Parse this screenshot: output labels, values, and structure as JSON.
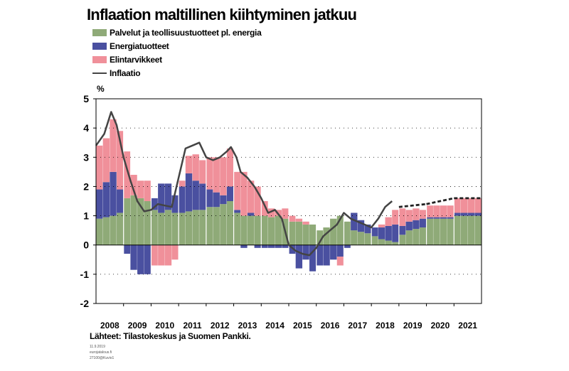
{
  "title": "Inflaation maltillinen kiihtyminen jatkuu",
  "source": "Lähteet: Tilastokeskus ja Suomen Pankki.",
  "footnotes": [
    "11.9.2019",
    "eurojatalous.fi",
    "27100@Kuvio1"
  ],
  "colors": {
    "services": "#8faa78",
    "energy": "#4a50a0",
    "food": "#f0909a",
    "inflation": "#444444",
    "forecast_line": "#222222",
    "frame": "#000000",
    "dotgrid": "#000000"
  },
  "chart_data": {
    "type": "bar",
    "subtype": "stacked bar with line overlay",
    "title": "Inflaation maltillinen kiihtyminen jatkuu",
    "unit_label": "%",
    "ylim": [
      -2,
      5
    ],
    "yticks": [
      "-2",
      "-1",
      "0",
      "1",
      "2",
      "3",
      "4",
      "5"
    ],
    "xlim": [
      2008,
      2022
    ],
    "xticks": [
      "2008",
      "2009",
      "2010",
      "2011",
      "2012",
      "2013",
      "2014",
      "2015",
      "2016",
      "2017",
      "2018",
      "2019",
      "2020",
      "2021"
    ],
    "legend_position": "top-left",
    "legend": [
      {
        "key": "services",
        "label": "Palvelut ja teollisuustuotteet pl. energia",
        "kind": "bar"
      },
      {
        "key": "energy",
        "label": "Energiatuotteet",
        "kind": "bar"
      },
      {
        "key": "food",
        "label": "Elintarvikkeet",
        "kind": "bar"
      },
      {
        "key": "inflation",
        "label": "Inflaatio",
        "kind": "line"
      }
    ],
    "quarters": [
      "2008Q1",
      "2008Q2",
      "2008Q3",
      "2008Q4",
      "2009Q1",
      "2009Q2",
      "2009Q3",
      "2009Q4",
      "2010Q1",
      "2010Q2",
      "2010Q3",
      "2010Q4",
      "2011Q1",
      "2011Q2",
      "2011Q3",
      "2011Q4",
      "2012Q1",
      "2012Q2",
      "2012Q3",
      "2012Q4",
      "2013Q1",
      "2013Q2",
      "2013Q3",
      "2013Q4",
      "2014Q1",
      "2014Q2",
      "2014Q3",
      "2014Q4",
      "2015Q1",
      "2015Q2",
      "2015Q3",
      "2015Q4",
      "2016Q1",
      "2016Q2",
      "2016Q3",
      "2016Q4",
      "2017Q1",
      "2017Q2",
      "2017Q3",
      "2017Q4",
      "2018Q1",
      "2018Q2",
      "2018Q3",
      "2018Q4",
      "2019Q1",
      "2019Q2",
      "2019Q3",
      "2019Q4",
      "2020Q1",
      "2020Q2",
      "2020Q3",
      "2020Q4",
      "2021Q1",
      "2021Q2",
      "2021Q3",
      "2021Q4"
    ],
    "series": [
      {
        "key": "services",
        "values": [
          0.9,
          0.95,
          1.0,
          1.1,
          1.6,
          1.7,
          1.6,
          1.5,
          1.2,
          1.1,
          1.2,
          1.1,
          1.1,
          1.15,
          1.2,
          1.2,
          1.3,
          1.3,
          1.4,
          1.5,
          1.1,
          1.0,
          1.0,
          1.0,
          1.0,
          0.95,
          1.0,
          0.9,
          0.8,
          0.8,
          0.7,
          0.7,
          0.5,
          0.6,
          0.9,
          1.0,
          0.8,
          0.5,
          0.45,
          0.4,
          0.3,
          0.2,
          0.15,
          0.1,
          0.35,
          0.5,
          0.55,
          0.6,
          0.9,
          0.9,
          0.9,
          0.9,
          1.0,
          1.0,
          1.0,
          1.0
        ]
      },
      {
        "key": "energy",
        "values": [
          1.0,
          1.2,
          1.5,
          0.8,
          -0.3,
          -0.85,
          -1.0,
          -1.0,
          0.4,
          1.0,
          0.9,
          0.6,
          0.9,
          1.3,
          1.0,
          0.9,
          0.6,
          0.5,
          0.3,
          0.5,
          0.1,
          -0.1,
          0.1,
          -0.1,
          -0.1,
          -0.1,
          -0.1,
          -0.1,
          -0.3,
          -0.8,
          -0.5,
          -0.9,
          -0.7,
          -0.7,
          -0.5,
          -0.4,
          -0.1,
          0.6,
          0.4,
          0.3,
          0.3,
          0.4,
          0.5,
          0.6,
          0.3,
          0.3,
          0.3,
          0.3,
          0.05,
          0.05,
          0.05,
          0.05,
          0.1,
          0.1,
          0.1,
          0.1
        ]
      },
      {
        "key": "food",
        "values": [
          1.5,
          1.5,
          1.8,
          2.0,
          1.6,
          0.7,
          0.6,
          0.7,
          -0.7,
          -0.7,
          -0.7,
          -0.5,
          0.2,
          0.6,
          0.9,
          0.8,
          1.1,
          1.2,
          1.3,
          1.3,
          1.3,
          1.5,
          1.1,
          1.0,
          0.5,
          0.3,
          0.2,
          0.35,
          0.2,
          0.1,
          0.1,
          0.0,
          0.0,
          0.0,
          0.0,
          -0.3,
          0.0,
          0.0,
          0.0,
          0.0,
          0.0,
          0.1,
          0.3,
          0.5,
          0.6,
          0.4,
          0.4,
          0.3,
          0.4,
          0.4,
          0.4,
          0.4,
          0.5,
          0.5,
          0.5,
          0.5
        ]
      }
    ],
    "inflation_line": [
      {
        "x": 2008.0,
        "y": 3.4
      },
      {
        "x": 2008.3,
        "y": 3.8
      },
      {
        "x": 2008.55,
        "y": 4.55
      },
      {
        "x": 2008.75,
        "y": 4.1
      },
      {
        "x": 2009.0,
        "y": 3.0
      },
      {
        "x": 2009.25,
        "y": 2.2
      },
      {
        "x": 2009.5,
        "y": 1.5
      },
      {
        "x": 2009.75,
        "y": 1.15
      },
      {
        "x": 2010.0,
        "y": 1.2
      },
      {
        "x": 2010.25,
        "y": 1.4
      },
      {
        "x": 2010.5,
        "y": 1.35
      },
      {
        "x": 2010.75,
        "y": 1.3
      },
      {
        "x": 2011.0,
        "y": 2.3
      },
      {
        "x": 2011.25,
        "y": 3.3
      },
      {
        "x": 2011.5,
        "y": 3.4
      },
      {
        "x": 2011.75,
        "y": 3.5
      },
      {
        "x": 2012.0,
        "y": 3.0
      },
      {
        "x": 2012.25,
        "y": 2.9
      },
      {
        "x": 2012.5,
        "y": 3.0
      },
      {
        "x": 2012.75,
        "y": 3.2
      },
      {
        "x": 2012.9,
        "y": 3.35
      },
      {
        "x": 2013.1,
        "y": 3.0
      },
      {
        "x": 2013.25,
        "y": 2.5
      },
      {
        "x": 2013.5,
        "y": 2.3
      },
      {
        "x": 2013.75,
        "y": 2.0
      },
      {
        "x": 2014.0,
        "y": 1.6
      },
      {
        "x": 2014.25,
        "y": 1.1
      },
      {
        "x": 2014.5,
        "y": 1.2
      },
      {
        "x": 2014.75,
        "y": 0.9
      },
      {
        "x": 2015.0,
        "y": 0.0
      },
      {
        "x": 2015.25,
        "y": -0.2
      },
      {
        "x": 2015.5,
        "y": -0.3
      },
      {
        "x": 2015.75,
        "y": -0.35
      },
      {
        "x": 2016.0,
        "y": -0.1
      },
      {
        "x": 2016.25,
        "y": 0.3
      },
      {
        "x": 2016.5,
        "y": 0.5
      },
      {
        "x": 2016.75,
        "y": 0.7
      },
      {
        "x": 2017.0,
        "y": 1.1
      },
      {
        "x": 2017.25,
        "y": 0.9
      },
      {
        "x": 2017.5,
        "y": 0.8
      },
      {
        "x": 2017.75,
        "y": 0.7
      },
      {
        "x": 2018.0,
        "y": 0.6
      },
      {
        "x": 2018.25,
        "y": 0.9
      },
      {
        "x": 2018.5,
        "y": 1.3
      },
      {
        "x": 2018.75,
        "y": 1.5
      }
    ],
    "forecast_line": [
      {
        "x": 2019.0,
        "y": 1.3
      },
      {
        "x": 2020.0,
        "y": 1.4
      },
      {
        "x": 2021.0,
        "y": 1.6
      },
      {
        "x": 2022.0,
        "y": 1.6
      }
    ]
  }
}
